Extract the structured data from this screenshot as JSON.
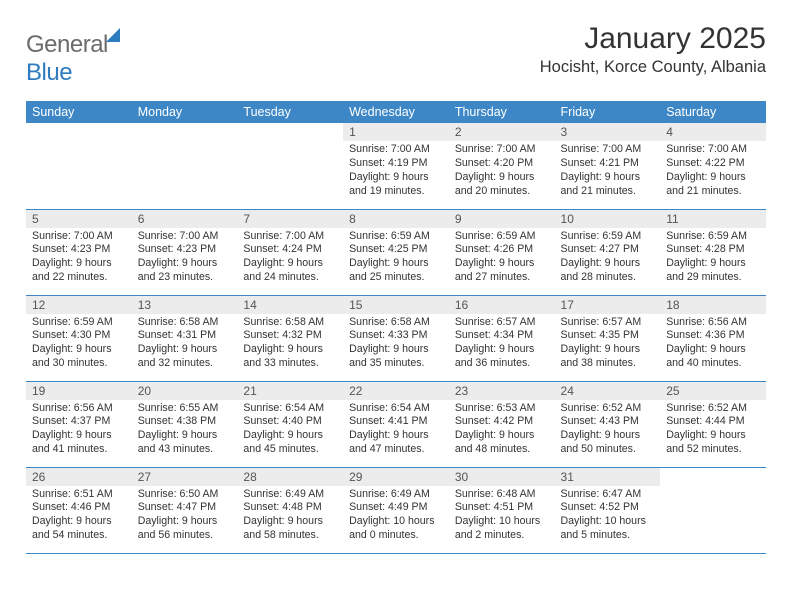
{
  "brand": {
    "word1": "General",
    "word2": "Blue"
  },
  "title": "January 2025",
  "location": "Hocisht, Korce County, Albania",
  "colors": {
    "header_bg": "#3d87c7",
    "header_fg": "#ffffff",
    "daynum_bg": "#ececec",
    "rule": "#3d87c7",
    "logo_gray": "#6b6b6b",
    "logo_blue": "#2f7bbf"
  },
  "weekdays": [
    "Sunday",
    "Monday",
    "Tuesday",
    "Wednesday",
    "Thursday",
    "Friday",
    "Saturday"
  ],
  "weeks": [
    [
      {
        "empty": true
      },
      {
        "empty": true
      },
      {
        "empty": true
      },
      {
        "day": "1",
        "sunrise": "7:00 AM",
        "sunset": "4:19 PM",
        "daylight": "9 hours and 19 minutes."
      },
      {
        "day": "2",
        "sunrise": "7:00 AM",
        "sunset": "4:20 PM",
        "daylight": "9 hours and 20 minutes."
      },
      {
        "day": "3",
        "sunrise": "7:00 AM",
        "sunset": "4:21 PM",
        "daylight": "9 hours and 21 minutes."
      },
      {
        "day": "4",
        "sunrise": "7:00 AM",
        "sunset": "4:22 PM",
        "daylight": "9 hours and 21 minutes."
      }
    ],
    [
      {
        "day": "5",
        "sunrise": "7:00 AM",
        "sunset": "4:23 PM",
        "daylight": "9 hours and 22 minutes."
      },
      {
        "day": "6",
        "sunrise": "7:00 AM",
        "sunset": "4:23 PM",
        "daylight": "9 hours and 23 minutes."
      },
      {
        "day": "7",
        "sunrise": "7:00 AM",
        "sunset": "4:24 PM",
        "daylight": "9 hours and 24 minutes."
      },
      {
        "day": "8",
        "sunrise": "6:59 AM",
        "sunset": "4:25 PM",
        "daylight": "9 hours and 25 minutes."
      },
      {
        "day": "9",
        "sunrise": "6:59 AM",
        "sunset": "4:26 PM",
        "daylight": "9 hours and 27 minutes."
      },
      {
        "day": "10",
        "sunrise": "6:59 AM",
        "sunset": "4:27 PM",
        "daylight": "9 hours and 28 minutes."
      },
      {
        "day": "11",
        "sunrise": "6:59 AM",
        "sunset": "4:28 PM",
        "daylight": "9 hours and 29 minutes."
      }
    ],
    [
      {
        "day": "12",
        "sunrise": "6:59 AM",
        "sunset": "4:30 PM",
        "daylight": "9 hours and 30 minutes."
      },
      {
        "day": "13",
        "sunrise": "6:58 AM",
        "sunset": "4:31 PM",
        "daylight": "9 hours and 32 minutes."
      },
      {
        "day": "14",
        "sunrise": "6:58 AM",
        "sunset": "4:32 PM",
        "daylight": "9 hours and 33 minutes."
      },
      {
        "day": "15",
        "sunrise": "6:58 AM",
        "sunset": "4:33 PM",
        "daylight": "9 hours and 35 minutes."
      },
      {
        "day": "16",
        "sunrise": "6:57 AM",
        "sunset": "4:34 PM",
        "daylight": "9 hours and 36 minutes."
      },
      {
        "day": "17",
        "sunrise": "6:57 AM",
        "sunset": "4:35 PM",
        "daylight": "9 hours and 38 minutes."
      },
      {
        "day": "18",
        "sunrise": "6:56 AM",
        "sunset": "4:36 PM",
        "daylight": "9 hours and 40 minutes."
      }
    ],
    [
      {
        "day": "19",
        "sunrise": "6:56 AM",
        "sunset": "4:37 PM",
        "daylight": "9 hours and 41 minutes."
      },
      {
        "day": "20",
        "sunrise": "6:55 AM",
        "sunset": "4:38 PM",
        "daylight": "9 hours and 43 minutes."
      },
      {
        "day": "21",
        "sunrise": "6:54 AM",
        "sunset": "4:40 PM",
        "daylight": "9 hours and 45 minutes."
      },
      {
        "day": "22",
        "sunrise": "6:54 AM",
        "sunset": "4:41 PM",
        "daylight": "9 hours and 47 minutes."
      },
      {
        "day": "23",
        "sunrise": "6:53 AM",
        "sunset": "4:42 PM",
        "daylight": "9 hours and 48 minutes."
      },
      {
        "day": "24",
        "sunrise": "6:52 AM",
        "sunset": "4:43 PM",
        "daylight": "9 hours and 50 minutes."
      },
      {
        "day": "25",
        "sunrise": "6:52 AM",
        "sunset": "4:44 PM",
        "daylight": "9 hours and 52 minutes."
      }
    ],
    [
      {
        "day": "26",
        "sunrise": "6:51 AM",
        "sunset": "4:46 PM",
        "daylight": "9 hours and 54 minutes."
      },
      {
        "day": "27",
        "sunrise": "6:50 AM",
        "sunset": "4:47 PM",
        "daylight": "9 hours and 56 minutes."
      },
      {
        "day": "28",
        "sunrise": "6:49 AM",
        "sunset": "4:48 PM",
        "daylight": "9 hours and 58 minutes."
      },
      {
        "day": "29",
        "sunrise": "6:49 AM",
        "sunset": "4:49 PM",
        "daylight": "10 hours and 0 minutes."
      },
      {
        "day": "30",
        "sunrise": "6:48 AM",
        "sunset": "4:51 PM",
        "daylight": "10 hours and 2 minutes."
      },
      {
        "day": "31",
        "sunrise": "6:47 AM",
        "sunset": "4:52 PM",
        "daylight": "10 hours and 5 minutes."
      },
      {
        "empty": true
      }
    ]
  ],
  "labels": {
    "sunrise": "Sunrise: ",
    "sunset": "Sunset: ",
    "daylight": "Daylight: "
  }
}
